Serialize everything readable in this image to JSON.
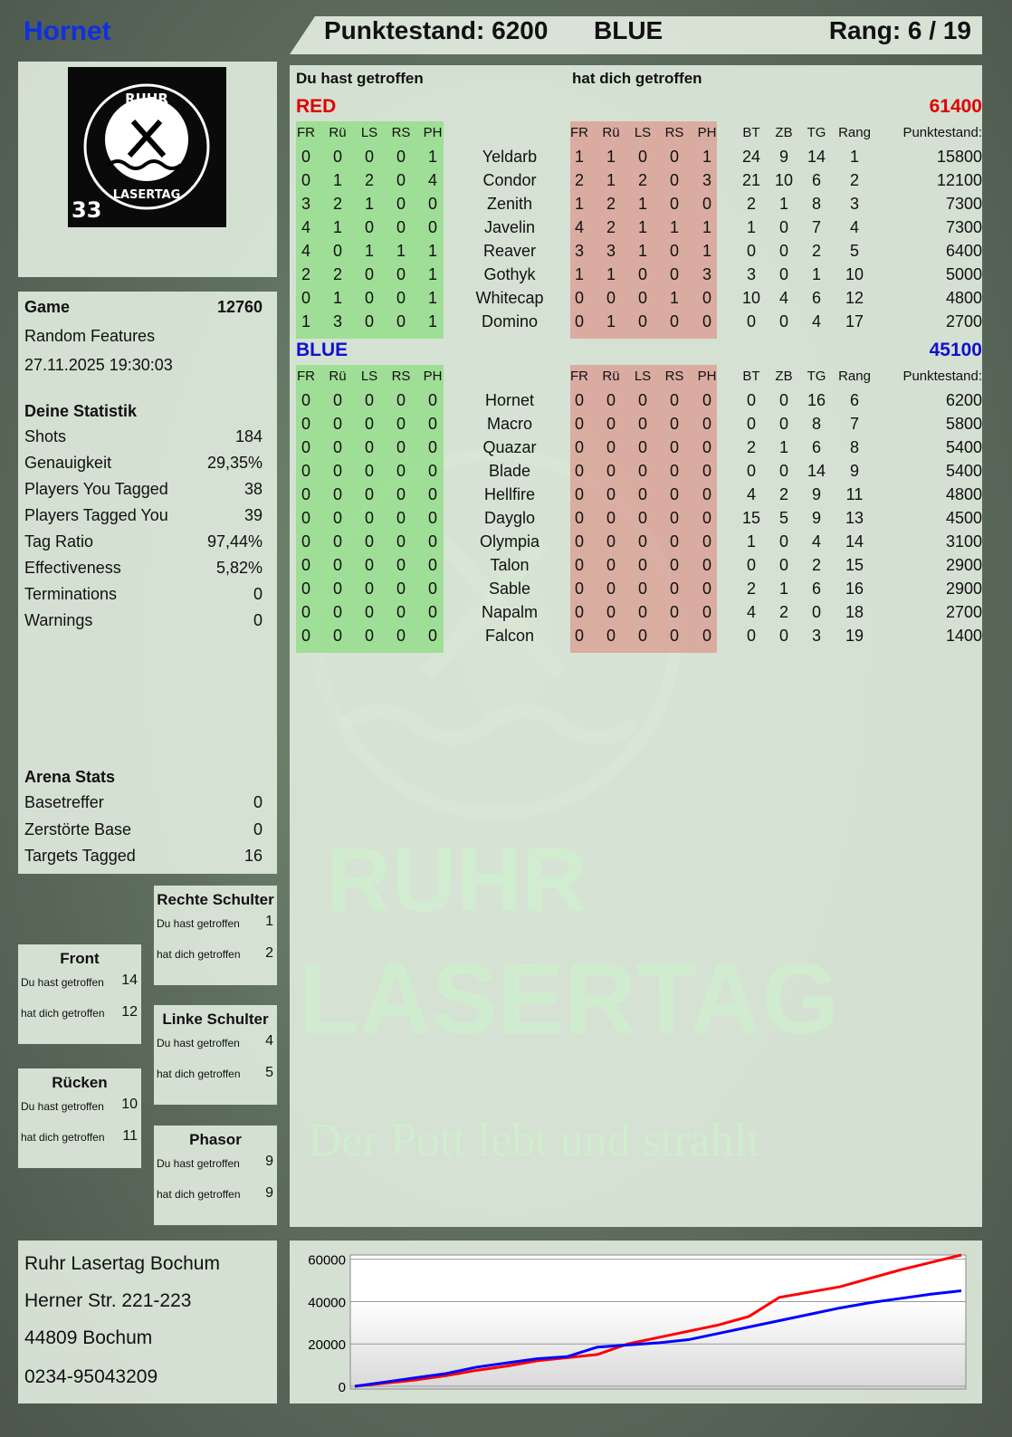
{
  "header": {
    "player": "Hornet",
    "score_label": "Punktestand: 6200",
    "team": "BLUE",
    "rank_label": "Rang: 6 / 19"
  },
  "logo": {
    "text_top": "RUHR",
    "text_bottom": "LASERTAG",
    "number": "33",
    "icon": "hammer-pick-icon"
  },
  "game": {
    "label": "Game",
    "number": "12760",
    "mode": "Random Features",
    "datetime": "27.11.2025 19:30:03"
  },
  "stats": {
    "title": "Deine Statistik",
    "rows": [
      {
        "label": "Shots",
        "value": "184"
      },
      {
        "label": "Genauigkeit",
        "value": "29,35%"
      },
      {
        "label": "Players You Tagged",
        "value": "38"
      },
      {
        "label": "Players Tagged You",
        "value": "39"
      },
      {
        "label": "Tag Ratio",
        "value": "97,44%"
      },
      {
        "label": "Effectiveness",
        "value": "5,82%"
      },
      {
        "label": "Terminations",
        "value": "0"
      },
      {
        "label": "Warnings",
        "value": "0"
      }
    ]
  },
  "arena": {
    "title": "Arena Stats",
    "rows": [
      {
        "label": "Basetreffer",
        "value": "0"
      },
      {
        "label": "Zerstörte Base",
        "value": "0"
      },
      {
        "label": "Targets Tagged",
        "value": "16"
      }
    ]
  },
  "hits": {
    "du": "Du hast getroffen",
    "hat": "hat dich getroffen",
    "rechte": {
      "title": "Rechte Schulter",
      "du": "1",
      "hat": "2"
    },
    "front": {
      "title": "Front",
      "du": "14",
      "hat": "12"
    },
    "linke": {
      "title": "Linke Schulter",
      "du": "4",
      "hat": "5"
    },
    "ruecken": {
      "title": "Rücken",
      "du": "10",
      "hat": "11"
    },
    "phasor": {
      "title": "Phasor",
      "du": "9",
      "hat": "9"
    }
  },
  "table": {
    "col_du": "Du hast getroffen",
    "col_hat": "hat dich getroffen",
    "hit_headers": [
      "FR",
      "Rü",
      "LS",
      "RS",
      "PH"
    ],
    "stat_headers": [
      "BT",
      "ZB",
      "TG",
      "Rang"
    ],
    "score_header": "Punktestand:",
    "teams": [
      {
        "name": "RED",
        "score": "61400",
        "color": "#e00000",
        "players": [
          {
            "name": "Yeldarb",
            "du": [
              0,
              0,
              0,
              0,
              1
            ],
            "hat": [
              1,
              1,
              0,
              0,
              1
            ],
            "stats": [
              24,
              9,
              14,
              1
            ],
            "score": 15800
          },
          {
            "name": "Condor",
            "du": [
              0,
              1,
              2,
              0,
              4
            ],
            "hat": [
              2,
              1,
              2,
              0,
              3
            ],
            "stats": [
              21,
              10,
              6,
              2
            ],
            "score": 12100
          },
          {
            "name": "Zenith",
            "du": [
              3,
              2,
              1,
              0,
              0
            ],
            "hat": [
              1,
              2,
              1,
              0,
              0
            ],
            "stats": [
              2,
              1,
              8,
              3
            ],
            "score": 7300
          },
          {
            "name": "Javelin",
            "du": [
              4,
              1,
              0,
              0,
              0
            ],
            "hat": [
              4,
              2,
              1,
              1,
              1
            ],
            "stats": [
              1,
              0,
              7,
              4
            ],
            "score": 7300
          },
          {
            "name": "Reaver",
            "du": [
              4,
              0,
              1,
              1,
              1
            ],
            "hat": [
              3,
              3,
              1,
              0,
              1
            ],
            "stats": [
              0,
              0,
              2,
              5
            ],
            "score": 6400
          },
          {
            "name": "Gothyk",
            "du": [
              2,
              2,
              0,
              0,
              1
            ],
            "hat": [
              1,
              1,
              0,
              0,
              3
            ],
            "stats": [
              3,
              0,
              1,
              10
            ],
            "score": 5000
          },
          {
            "name": "Whitecap",
            "du": [
              0,
              1,
              0,
              0,
              1
            ],
            "hat": [
              0,
              0,
              0,
              1,
              0
            ],
            "stats": [
              10,
              4,
              6,
              12
            ],
            "score": 4800
          },
          {
            "name": "Domino",
            "du": [
              1,
              3,
              0,
              0,
              1
            ],
            "hat": [
              0,
              1,
              0,
              0,
              0
            ],
            "stats": [
              0,
              0,
              4,
              17
            ],
            "score": 2700
          }
        ]
      },
      {
        "name": "BLUE",
        "score": "45100",
        "color": "#1010d0",
        "players": [
          {
            "name": "Hornet",
            "du": [
              0,
              0,
              0,
              0,
              0
            ],
            "hat": [
              0,
              0,
              0,
              0,
              0
            ],
            "stats": [
              0,
              0,
              16,
              6
            ],
            "score": 6200
          },
          {
            "name": "Macro",
            "du": [
              0,
              0,
              0,
              0,
              0
            ],
            "hat": [
              0,
              0,
              0,
              0,
              0
            ],
            "stats": [
              0,
              0,
              8,
              7
            ],
            "score": 5800
          },
          {
            "name": "Quazar",
            "du": [
              0,
              0,
              0,
              0,
              0
            ],
            "hat": [
              0,
              0,
              0,
              0,
              0
            ],
            "stats": [
              2,
              1,
              6,
              8
            ],
            "score": 5400
          },
          {
            "name": "Blade",
            "du": [
              0,
              0,
              0,
              0,
              0
            ],
            "hat": [
              0,
              0,
              0,
              0,
              0
            ],
            "stats": [
              0,
              0,
              14,
              9
            ],
            "score": 5400
          },
          {
            "name": "Hellfire",
            "du": [
              0,
              0,
              0,
              0,
              0
            ],
            "hat": [
              0,
              0,
              0,
              0,
              0
            ],
            "stats": [
              4,
              2,
              9,
              11
            ],
            "score": 4800
          },
          {
            "name": "Dayglo",
            "du": [
              0,
              0,
              0,
              0,
              0
            ],
            "hat": [
              0,
              0,
              0,
              0,
              0
            ],
            "stats": [
              15,
              5,
              9,
              13
            ],
            "score": 4500
          },
          {
            "name": "Olympia",
            "du": [
              0,
              0,
              0,
              0,
              0
            ],
            "hat": [
              0,
              0,
              0,
              0,
              0
            ],
            "stats": [
              1,
              0,
              4,
              14
            ],
            "score": 3100
          },
          {
            "name": "Talon",
            "du": [
              0,
              0,
              0,
              0,
              0
            ],
            "hat": [
              0,
              0,
              0,
              0,
              0
            ],
            "stats": [
              0,
              0,
              2,
              15
            ],
            "score": 2900
          },
          {
            "name": "Sable",
            "du": [
              0,
              0,
              0,
              0,
              0
            ],
            "hat": [
              0,
              0,
              0,
              0,
              0
            ],
            "stats": [
              2,
              1,
              6,
              16
            ],
            "score": 2900
          },
          {
            "name": "Napalm",
            "du": [
              0,
              0,
              0,
              0,
              0
            ],
            "hat": [
              0,
              0,
              0,
              0,
              0
            ],
            "stats": [
              4,
              2,
              0,
              18
            ],
            "score": 2700
          },
          {
            "name": "Falcon",
            "du": [
              0,
              0,
              0,
              0,
              0
            ],
            "hat": [
              0,
              0,
              0,
              0,
              0
            ],
            "stats": [
              0,
              0,
              3,
              19
            ],
            "score": 1400
          }
        ]
      }
    ]
  },
  "watermark": {
    "line1": "RUHR",
    "line2": "LASERTAG",
    "slogan": "Der Pott lebt und strahlt"
  },
  "address": {
    "lines": [
      "Ruhr Lasertag Bochum",
      "Herner Str. 221-223",
      "44809 Bochum",
      "0234-95043209"
    ]
  },
  "chart_data": {
    "type": "line",
    "ylim": [
      0,
      62000
    ],
    "yticks": [
      "60000",
      "40000",
      "20000",
      "0"
    ],
    "grid": true,
    "series": [
      {
        "color": "#ff0000",
        "values": [
          0,
          1500,
          3000,
          5000,
          7500,
          9500,
          12000,
          13500,
          15000,
          20000,
          23000,
          26000,
          29000,
          33000,
          42000,
          44500,
          47000,
          51000,
          55000,
          58500,
          62000
        ]
      },
      {
        "color": "#0000ff",
        "values": [
          0,
          2000,
          4000,
          6000,
          9000,
          11000,
          13000,
          14000,
          18500,
          19500,
          20500,
          22000,
          25000,
          28000,
          31000,
          34000,
          37000,
          39500,
          41500,
          43500,
          45100
        ]
      }
    ]
  }
}
